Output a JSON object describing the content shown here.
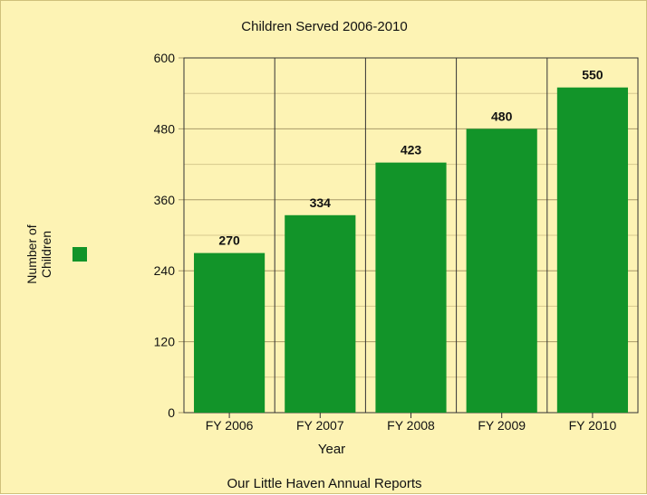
{
  "chart_data": {
    "type": "bar",
    "title": "Children Served 2006-2010",
    "xlabel": "Year",
    "ylabel": "Number of Children",
    "legend_label": "Number of Children",
    "source": "Our Little Haven Annual Reports",
    "categories": [
      "FY 2006",
      "FY 2007",
      "FY 2008",
      "FY 2009",
      "FY 2010"
    ],
    "values": [
      270,
      334,
      423,
      480,
      550
    ],
    "ylim": [
      0,
      600
    ],
    "yticks": [
      0,
      120,
      240,
      360,
      480,
      600
    ],
    "grid": true,
    "legend_position": "left",
    "colors": {
      "bar": "#129429",
      "background": "#fdf3b4",
      "grid": "#c8b87a"
    }
  }
}
